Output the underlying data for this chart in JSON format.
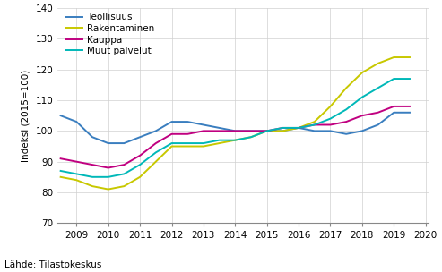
{
  "years": [
    2008.5,
    2009,
    2009.5,
    2010,
    2010.5,
    2011,
    2011.5,
    2012,
    2012.5,
    2013,
    2013.5,
    2014,
    2014.5,
    2015,
    2015.5,
    2016,
    2016.5,
    2017,
    2017.5,
    2018,
    2018.5,
    2019,
    2019.5
  ],
  "teollisuus": [
    105,
    103,
    98,
    96,
    96,
    98,
    100,
    103,
    103,
    102,
    101,
    100,
    100,
    100,
    100,
    101,
    100,
    100,
    99,
    100,
    102,
    106,
    106
  ],
  "rakentaminen": [
    85,
    84,
    82,
    81,
    82,
    85,
    90,
    95,
    95,
    95,
    96,
    97,
    98,
    100,
    100,
    101,
    103,
    108,
    114,
    119,
    122,
    124,
    124
  ],
  "kauppa": [
    91,
    90,
    89,
    88,
    89,
    92,
    96,
    99,
    99,
    100,
    100,
    100,
    100,
    100,
    101,
    101,
    102,
    102,
    103,
    105,
    106,
    108,
    108
  ],
  "muut_palvelut": [
    87,
    86,
    85,
    85,
    86,
    89,
    93,
    96,
    96,
    96,
    97,
    97,
    98,
    100,
    101,
    101,
    102,
    104,
    107,
    111,
    114,
    117,
    117
  ],
  "colors": {
    "teollisuus": "#3a7ebf",
    "rakentaminen": "#c8c800",
    "kauppa": "#c00080",
    "muut_palvelut": "#00b8b8"
  },
  "legend_labels": [
    "Teollisuus",
    "Rakentaminen",
    "Kauppa",
    "Muut palvelut"
  ],
  "ylabel": "Indeksi (2015=100)",
  "ylim": [
    70,
    140
  ],
  "yticks": [
    70,
    80,
    90,
    100,
    110,
    120,
    130,
    140
  ],
  "xlim": [
    2008.4,
    2020.1
  ],
  "xticks": [
    2009,
    2010,
    2011,
    2012,
    2013,
    2014,
    2015,
    2016,
    2017,
    2018,
    2019,
    2020
  ],
  "source_text": "Lähde: Tilastokeskus",
  "background_color": "#ffffff",
  "grid_color": "#d0d0d0"
}
